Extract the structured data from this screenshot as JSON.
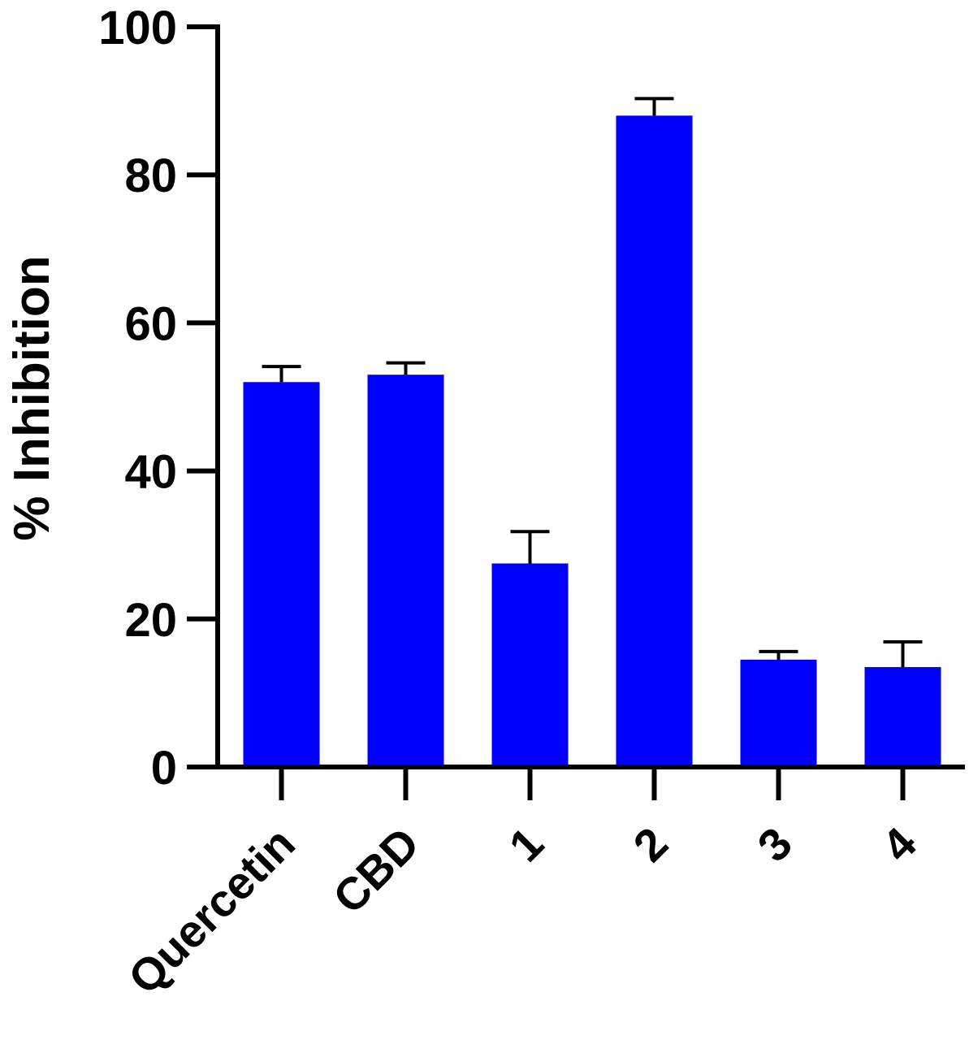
{
  "chart_data": {
    "type": "bar",
    "categories": [
      "Quercetin",
      "CBD",
      "1",
      "2",
      "3",
      "4"
    ],
    "values": [
      52,
      53,
      27.5,
      88,
      14.5,
      13.5
    ],
    "errors": [
      2.1,
      1.6,
      4.3,
      2.3,
      1.1,
      3.4
    ],
    "title": "",
    "xlabel": "",
    "ylabel": "% Inhibition",
    "ylim": [
      0,
      100
    ],
    "yticks": [
      0,
      20,
      40,
      60,
      80,
      100
    ],
    "bar_color": "#0000FF",
    "error_bars": "mean + error (upper only)",
    "grid": false,
    "legend": "none"
  }
}
